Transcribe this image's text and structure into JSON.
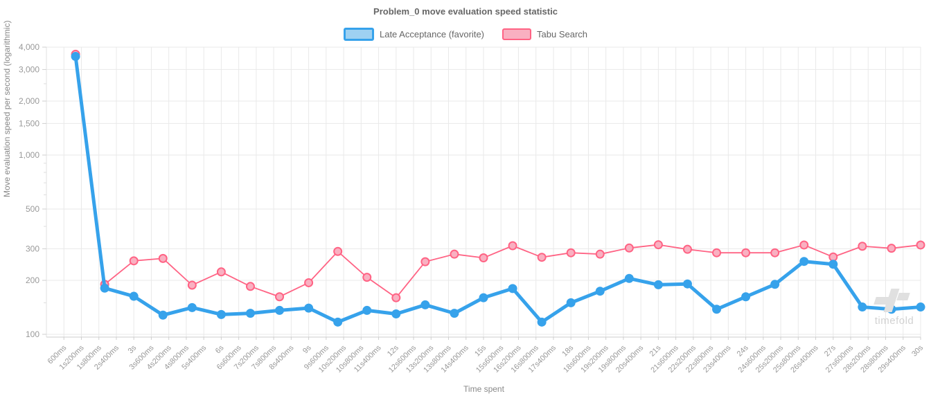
{
  "title": "Problem_0 move evaluation speed statistic",
  "legend": {
    "items": [
      {
        "label": "Late Acceptance (favorite)",
        "line_color": "#36A2EB",
        "fill_color": "#9ED1F2"
      },
      {
        "label": "Tabu Search",
        "line_color": "#FF6384",
        "fill_color": "#F9B0C1"
      }
    ]
  },
  "axes": {
    "x_label": "Time spent",
    "y_label": "Move evaluation speed per second (logarithmic)",
    "y_scale": "log",
    "x_max_ms": 30000,
    "x_tick_interval_ms": 600,
    "x_tick_labels": [
      "600ms",
      "1s200ms",
      "1s800ms",
      "2s400ms",
      "3s",
      "3s600ms",
      "4s200ms",
      "4s800ms",
      "5s400ms",
      "6s",
      "6s600ms",
      "7s200ms",
      "7s800ms",
      "8s400ms",
      "9s",
      "9s600ms",
      "10s200ms",
      "10s800ms",
      "11s400ms",
      "12s",
      "12s600ms",
      "13s200ms",
      "13s800ms",
      "14s400ms",
      "15s",
      "15s600ms",
      "16s200ms",
      "16s800ms",
      "17s400ms",
      "18s",
      "18s600ms",
      "19s200ms",
      "19s800ms",
      "20s400ms",
      "21s",
      "21s600ms",
      "22s200ms",
      "22s800ms",
      "23s400ms",
      "24s",
      "24s600ms",
      "25s200ms",
      "25s800ms",
      "26s400ms",
      "27s",
      "27s600ms",
      "28s200ms",
      "28s800ms",
      "29s400ms",
      "30s"
    ],
    "y_major_ticks": [
      {
        "value": 4000,
        "label": "4,000"
      },
      {
        "value": 3000,
        "label": "3,000"
      },
      {
        "value": 2000,
        "label": "2,000"
      },
      {
        "value": 1500,
        "label": "1,500"
      },
      {
        "value": 1000,
        "label": "1,000"
      },
      {
        "value": 500,
        "label": "500"
      },
      {
        "value": 300,
        "label": "300"
      },
      {
        "value": 200,
        "label": "200"
      },
      {
        "value": 100,
        "label": "100"
      }
    ],
    "y_minor_ticks": [
      150,
      400,
      600,
      700,
      800,
      900,
      2500
    ]
  },
  "chart_data": {
    "type": "line",
    "x_ms": [
      1000,
      2000,
      3000,
      4000,
      5000,
      6000,
      7000,
      8000,
      9000,
      10000,
      11000,
      12000,
      13000,
      14000,
      15000,
      16000,
      17000,
      18000,
      19000,
      20000,
      21000,
      22000,
      23000,
      24000,
      25000,
      26000,
      27000,
      28000,
      29000,
      30000
    ],
    "series": [
      {
        "name": "Late Acceptance (favorite)",
        "line_color": "#36A2EB",
        "point_fill": "#36A2EB",
        "point_stroke": "#36A2EB",
        "line_width": 5,
        "point_radius": 6.5,
        "point_border_width": 0,
        "values": [
          3550,
          181,
          163,
          128,
          141,
          129,
          131,
          136,
          140,
          117,
          136,
          130,
          146,
          131,
          160,
          180,
          117,
          150,
          174,
          205,
          189,
          191,
          138,
          162,
          190,
          255,
          246,
          142,
          138,
          142
        ]
      },
      {
        "name": "Tabu Search",
        "line_color": "#FF6384",
        "point_fill": "#F9B0C1",
        "point_stroke": "#FF6384",
        "line_width": 1.8,
        "point_radius": 5.5,
        "point_border_width": 2,
        "values": [
          3650,
          190,
          257,
          265,
          188,
          223,
          185,
          162,
          194,
          290,
          208,
          160,
          254,
          280,
          267,
          312,
          269,
          285,
          280,
          303,
          316,
          298,
          285,
          285,
          285,
          315,
          270,
          310,
          302,
          315
        ]
      }
    ],
    "title": "Problem_0 move evaluation speed statistic",
    "xlabel": "Time spent",
    "ylabel": "Move evaluation speed per second (logarithmic)",
    "ylim": [
      96,
      4000
    ],
    "grid": true,
    "legend_position": "top"
  },
  "watermark": {
    "text": "timefold"
  }
}
